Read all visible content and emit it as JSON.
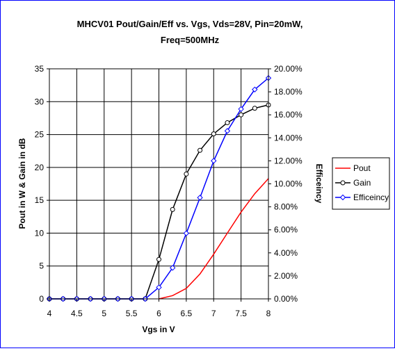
{
  "chart_data": {
    "type": "line",
    "title_lines": [
      "MHCV01 Pout/Gain/Eff vs. Vgs, Vds=28V, Pin=20mW,",
      "Freq=500MHz"
    ],
    "xlabel": "Vgs in V",
    "ylabel": "Pout in W & Gain in dB",
    "y2label": "Efficeincy",
    "xlim": [
      4,
      8
    ],
    "ylim": [
      0,
      35
    ],
    "y2lim": [
      0,
      0.2
    ],
    "xticks": [
      "4",
      "4.5",
      "5",
      "5.5",
      "6",
      "6.5",
      "7",
      "7.5",
      "8"
    ],
    "yticks": [
      "0",
      "5",
      "10",
      "15",
      "20",
      "25",
      "30",
      "35"
    ],
    "y2ticks": [
      "0.00%",
      "2.00%",
      "4.00%",
      "6.00%",
      "8.00%",
      "10.00%",
      "12.00%",
      "14.00%",
      "16.00%",
      "18.00%",
      "20.00%"
    ],
    "grid": true,
    "legend_position": "right",
    "series": [
      {
        "name": "Pout",
        "axis": "left",
        "color": "#ff0000",
        "marker": "none",
        "x": [
          6.0,
          6.25,
          6.5,
          6.75,
          7.0,
          7.25,
          7.5,
          7.75,
          8.0
        ],
        "y": [
          0.0,
          0.5,
          1.6,
          3.8,
          6.8,
          10.0,
          13.2,
          16.0,
          18.3
        ]
      },
      {
        "name": "Gain",
        "axis": "left",
        "color": "#000000",
        "marker": "circle",
        "x": [
          4.0,
          4.25,
          4.5,
          4.75,
          5.0,
          5.25,
          5.5,
          5.75,
          6.0,
          6.25,
          6.5,
          6.75,
          7.0,
          7.25,
          7.5,
          7.75,
          8.0
        ],
        "y": [
          0.0,
          0.0,
          0.0,
          0.0,
          0.0,
          0.0,
          0.0,
          0.0,
          6.0,
          13.6,
          19.0,
          22.6,
          25.1,
          26.8,
          28.0,
          29.0,
          29.5
        ]
      },
      {
        "name": "Efficeincy",
        "axis": "right",
        "color": "#0000ff",
        "marker": "diamond",
        "x": [
          4.0,
          4.25,
          4.5,
          4.75,
          5.0,
          5.25,
          5.5,
          5.75,
          6.0,
          6.25,
          6.5,
          6.75,
          7.0,
          7.25,
          7.5,
          7.75,
          8.0
        ],
        "y": [
          0.0,
          0.0,
          0.0,
          0.0,
          0.0,
          0.0,
          0.0,
          0.0,
          0.01,
          0.027,
          0.057,
          0.088,
          0.12,
          0.146,
          0.165,
          0.182,
          0.192
        ]
      }
    ]
  }
}
